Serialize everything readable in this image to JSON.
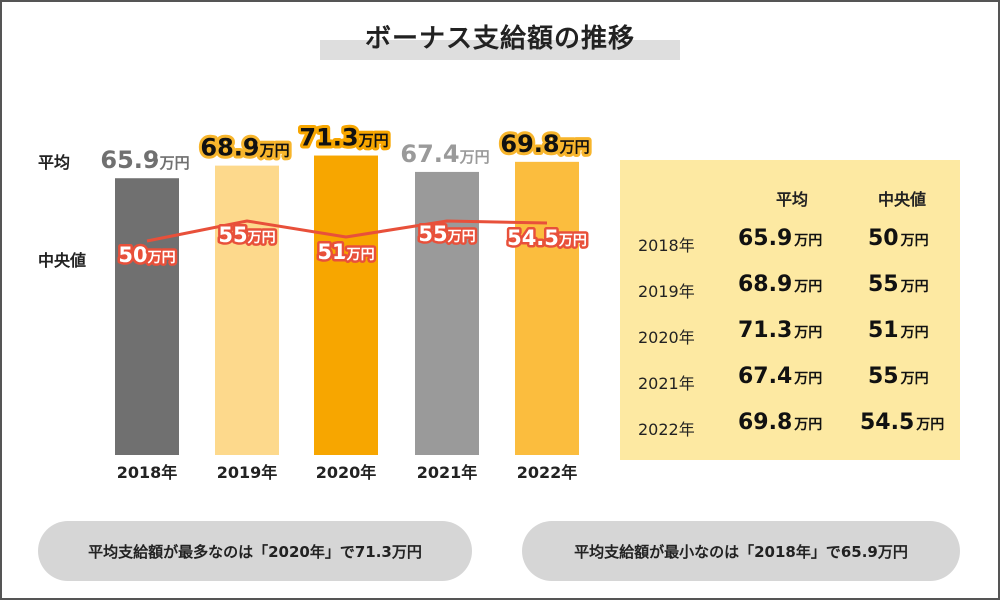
{
  "title": "ボーナス支給額の推移",
  "row_labels": {
    "avg": "平均",
    "median": "中央値"
  },
  "unit": "万円",
  "chart_data": {
    "type": "bar",
    "title": "ボーナス支給額の推移",
    "categories": [
      "2018年",
      "2019年",
      "2020年",
      "2021年",
      "2022年"
    ],
    "series": [
      {
        "name": "平均",
        "type": "bar",
        "values": [
          65.9,
          68.9,
          71.3,
          67.4,
          69.8
        ],
        "labels": [
          "65.9",
          "68.9",
          "71.3",
          "67.4",
          "69.8"
        ]
      },
      {
        "name": "中央値",
        "type": "line",
        "values": [
          50,
          55,
          51,
          55,
          54.5
        ],
        "labels": [
          "50",
          "55",
          "51",
          "55",
          "54.5"
        ]
      }
    ],
    "unit": "万円",
    "bar_colors": [
      "#707070",
      "#fdd98c",
      "#f7a600",
      "#9a9a9a",
      "#fbbd3e"
    ],
    "avg_label_fill": [
      "#707070",
      "#111111",
      "#111111",
      "#9a9a9a",
      "#111111"
    ],
    "avg_label_stroke": [
      "#ffffff",
      "#f7b52c",
      "#f7a600",
      "#ffffff",
      "#f7b52c"
    ],
    "line_color": "#e8503a",
    "ylim": [
      0,
      80
    ]
  },
  "table": {
    "headers": {
      "avg": "平均",
      "median": "中央値"
    },
    "unit": "万円",
    "rows": [
      {
        "year": "2018年",
        "avg": "65.9",
        "median": "50"
      },
      {
        "year": "2019年",
        "avg": "68.9",
        "median": "55"
      },
      {
        "year": "2020年",
        "avg": "71.3",
        "median": "51"
      },
      {
        "year": "2021年",
        "avg": "67.4",
        "median": "55"
      },
      {
        "year": "2022年",
        "avg": "69.8",
        "median": "54.5"
      }
    ]
  },
  "notes": {
    "max": "平均支給額が最多なのは「2020年」で71.3万円",
    "min": "平均支給額が最小なのは「2018年」で65.9万円"
  }
}
